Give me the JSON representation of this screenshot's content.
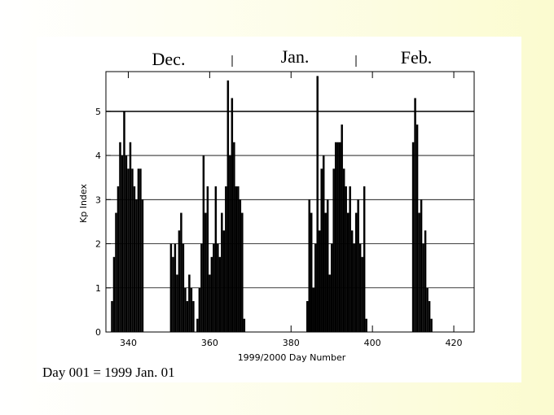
{
  "chart_data": {
    "type": "bar",
    "x_label": "1999/2000 Day Number",
    "y_label": "Kp Index",
    "months": [
      "Dec.",
      "Jan.",
      "Feb."
    ],
    "note": "Day 001 = 1999 Jan. 01",
    "color": "#000000",
    "grid": true,
    "xlim": [
      334.5,
      425
    ],
    "xticks": [
      340,
      360,
      380,
      400,
      420
    ],
    "ylim": [
      0,
      5.9
    ],
    "yticks": [
      0,
      1,
      2,
      3,
      4,
      5
    ],
    "x": [
      336,
      336.5,
      337,
      337.5,
      338,
      338.5,
      339,
      339.5,
      340,
      340.5,
      341,
      341.5,
      342,
      342.5,
      343,
      343.5,
      350.5,
      351,
      351.5,
      352,
      352.5,
      353,
      353.5,
      354,
      354.5,
      355,
      355.5,
      356,
      357,
      357.5,
      358,
      358.5,
      359,
      359.5,
      360,
      360.5,
      361,
      361.5,
      362,
      362.5,
      363,
      363.5,
      364,
      364.5,
      365,
      365.5,
      366,
      366.5,
      367,
      367.5,
      368,
      368.5,
      384,
      384.5,
      385,
      385.5,
      386,
      386.5,
      387,
      387.5,
      388,
      388.5,
      389,
      389.5,
      390,
      390.5,
      391,
      391.5,
      392,
      392.5,
      393,
      393.5,
      394,
      394.5,
      395,
      395.5,
      396,
      396.5,
      397,
      397.5,
      398,
      398.5,
      410,
      410.5,
      411,
      411.5,
      412,
      412.5,
      413,
      413.5,
      414,
      414.5
    ],
    "values": [
      0.7,
      1.7,
      2.7,
      3.3,
      4.3,
      4.0,
      5.0,
      4.0,
      3.7,
      4.3,
      3.7,
      3.3,
      3.0,
      3.7,
      3.7,
      3.0,
      2.0,
      1.7,
      2.0,
      1.3,
      2.3,
      2.7,
      2.0,
      1.0,
      0.7,
      1.3,
      1.0,
      0.7,
      0.3,
      1.0,
      2.0,
      4.0,
      2.7,
      3.3,
      1.3,
      1.7,
      2.0,
      3.3,
      2.0,
      1.7,
      2.7,
      2.3,
      3.3,
      5.7,
      4.0,
      5.3,
      4.3,
      3.3,
      3.3,
      3.0,
      2.7,
      0.3,
      0.7,
      3.0,
      2.7,
      1.0,
      2.0,
      5.8,
      2.3,
      3.7,
      4.0,
      2.7,
      3.0,
      1.3,
      2.0,
      3.7,
      4.3,
      4.3,
      4.3,
      4.7,
      3.7,
      3.3,
      2.7,
      3.3,
      2.3,
      2.0,
      2.7,
      3.0,
      2.0,
      1.7,
      3.3,
      0.3,
      4.3,
      5.3,
      4.7,
      2.7,
      3.0,
      2.0,
      2.3,
      1.0,
      0.7,
      0.3
    ]
  }
}
